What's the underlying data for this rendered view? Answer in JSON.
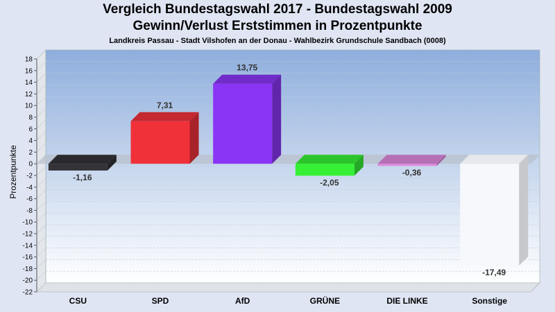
{
  "header": {
    "title_line1": "Vergleich Bundestagswahl 2017 - Bundestagswahl 2009",
    "title_line2": "Gewinn/Verlust Erststimmen in Prozentpunkte",
    "subtitle": "Landkreis Passau - Stadt Vilshofen an der Donau - Wahlbezirk  Grundschule Sandbach (0008)"
  },
  "chart_data": {
    "type": "bar",
    "title": "Vergleich Bundestagswahl 2017 - Bundestagswahl 2009",
    "subtitle": "Gewinn/Verlust Erststimmen in Prozentpunkte",
    "ylabel": "Prozentpunkte",
    "xlabel": "",
    "ylim": [
      -22,
      18
    ],
    "ytick_step": 2,
    "grid": true,
    "categories": [
      "CSU",
      "SPD",
      "AfD",
      "GRÜNE",
      "DIE LINKE",
      "Sonstige"
    ],
    "values": [
      -1.16,
      7.31,
      13.75,
      -2.05,
      -0.36,
      -17.49
    ],
    "value_labels": [
      "-1,16",
      "7,31",
      "13,75",
      "-2,05",
      "-0,36",
      "-17,49"
    ],
    "colors": [
      "#333338",
      "#f0313a",
      "#8a35f5",
      "#35f035",
      "#dd88dd",
      "#f6f8fc"
    ]
  }
}
